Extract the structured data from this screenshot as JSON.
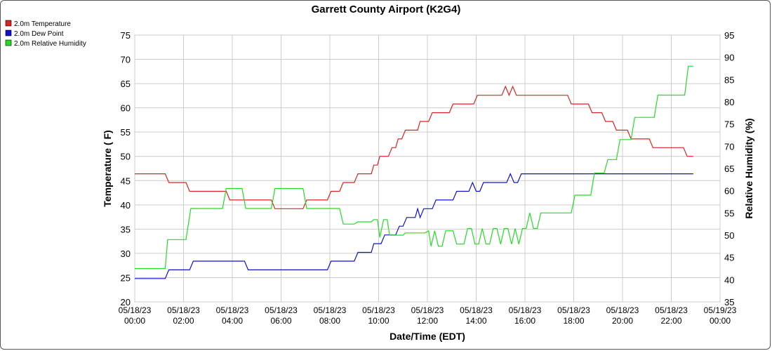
{
  "chart_data": {
    "type": "line",
    "title": "Garrett County Airport (K2G4)",
    "xlabel": "Date/Time (EDT)",
    "ylabel_left": "Temperature ( F)",
    "ylabel_right": "Relative Humidity (%)",
    "ylim_left": [
      20,
      75
    ],
    "ylim_right": [
      35,
      95
    ],
    "yticks_left": [
      20,
      25,
      30,
      35,
      40,
      45,
      50,
      55,
      60,
      65,
      70,
      75
    ],
    "yticks_right": [
      35,
      40,
      45,
      50,
      55,
      60,
      65,
      70,
      75,
      80,
      85,
      90,
      95
    ],
    "xlim_hours": [
      0,
      24
    ],
    "x_ticks": [
      {
        "hour": 0,
        "date": "05/18/23",
        "time": "00:00"
      },
      {
        "hour": 2,
        "date": "05/18/23",
        "time": "02:00"
      },
      {
        "hour": 4,
        "date": "05/18/23",
        "time": "04:00"
      },
      {
        "hour": 6,
        "date": "05/18/23",
        "time": "06:00"
      },
      {
        "hour": 8,
        "date": "05/18/23",
        "time": "08:00"
      },
      {
        "hour": 10,
        "date": "05/18/23",
        "time": "10:00"
      },
      {
        "hour": 12,
        "date": "05/18/23",
        "time": "12:00"
      },
      {
        "hour": 14,
        "date": "05/18/23",
        "time": "14:00"
      },
      {
        "hour": 16,
        "date": "05/18/23",
        "time": "16:00"
      },
      {
        "hour": 18,
        "date": "05/18/23",
        "time": "18:00"
      },
      {
        "hour": 20,
        "date": "05/18/23",
        "time": "20:00"
      },
      {
        "hour": 22,
        "date": "05/18/23",
        "time": "22:00"
      },
      {
        "hour": 24,
        "date": "05/19/23",
        "time": "00:00"
      }
    ],
    "grid": true,
    "legend_position": "top-left",
    "series": [
      {
        "name": "2.0m Temperature",
        "color": "#dd2222",
        "axis": "left",
        "points": [
          [
            0,
            46.4
          ],
          [
            1.25,
            46.4
          ],
          [
            1.4,
            44.6
          ],
          [
            2.1,
            44.6
          ],
          [
            2.25,
            42.8
          ],
          [
            3.75,
            42.8
          ],
          [
            3.9,
            41
          ],
          [
            5.6,
            41
          ],
          [
            5.75,
            39.2
          ],
          [
            6.9,
            39.2
          ],
          [
            7.05,
            41
          ],
          [
            7.9,
            41
          ],
          [
            8.05,
            42.8
          ],
          [
            8.4,
            42.8
          ],
          [
            8.55,
            44.6
          ],
          [
            9.0,
            44.6
          ],
          [
            9.15,
            46.4
          ],
          [
            9.7,
            46.4
          ],
          [
            9.8,
            48.2
          ],
          [
            9.95,
            48.2
          ],
          [
            10.05,
            50
          ],
          [
            10.4,
            50
          ],
          [
            10.55,
            51.8
          ],
          [
            10.7,
            51.8
          ],
          [
            10.8,
            53.6
          ],
          [
            10.95,
            53.6
          ],
          [
            11.1,
            55.4
          ],
          [
            11.6,
            55.4
          ],
          [
            11.7,
            57.2
          ],
          [
            12.05,
            57.2
          ],
          [
            12.2,
            59
          ],
          [
            12.9,
            59
          ],
          [
            13.05,
            60.8
          ],
          [
            13.9,
            60.8
          ],
          [
            14.05,
            62.6
          ],
          [
            15.05,
            62.6
          ],
          [
            15.2,
            64.4
          ],
          [
            15.35,
            62.6
          ],
          [
            15.5,
            64.4
          ],
          [
            15.65,
            62.6
          ],
          [
            17.75,
            62.6
          ],
          [
            17.9,
            60.8
          ],
          [
            18.6,
            60.8
          ],
          [
            18.75,
            59
          ],
          [
            19.15,
            59
          ],
          [
            19.3,
            57.2
          ],
          [
            19.6,
            57.2
          ],
          [
            19.75,
            55.4
          ],
          [
            20.2,
            55.4
          ],
          [
            20.35,
            53.6
          ],
          [
            21.1,
            53.6
          ],
          [
            21.25,
            51.8
          ],
          [
            22.5,
            51.8
          ],
          [
            22.65,
            50
          ],
          [
            22.9,
            50
          ]
        ]
      },
      {
        "name": "2.0m Dew Point",
        "color": "#1111cc",
        "axis": "left",
        "points": [
          [
            0,
            24.8
          ],
          [
            1.25,
            24.8
          ],
          [
            1.4,
            26.6
          ],
          [
            2.25,
            26.6
          ],
          [
            2.4,
            28.4
          ],
          [
            4.5,
            28.4
          ],
          [
            4.65,
            26.6
          ],
          [
            7.9,
            26.6
          ],
          [
            8.05,
            28.4
          ],
          [
            9.0,
            28.4
          ],
          [
            9.15,
            30.2
          ],
          [
            9.7,
            30.2
          ],
          [
            9.8,
            32
          ],
          [
            10.1,
            32
          ],
          [
            10.25,
            33.8
          ],
          [
            10.7,
            33.8
          ],
          [
            10.85,
            35.6
          ],
          [
            11.0,
            35.6
          ],
          [
            11.15,
            37.4
          ],
          [
            11.5,
            37.4
          ],
          [
            11.6,
            39.2
          ],
          [
            11.7,
            37.4
          ],
          [
            11.85,
            39.2
          ],
          [
            12.2,
            39.2
          ],
          [
            12.35,
            41
          ],
          [
            13.05,
            41
          ],
          [
            13.2,
            42.8
          ],
          [
            13.7,
            42.8
          ],
          [
            13.85,
            44.6
          ],
          [
            14.0,
            42.8
          ],
          [
            14.15,
            42.8
          ],
          [
            14.3,
            44.6
          ],
          [
            15.25,
            44.6
          ],
          [
            15.4,
            46.4
          ],
          [
            15.55,
            44.6
          ],
          [
            15.7,
            44.6
          ],
          [
            15.85,
            46.4
          ],
          [
            22.9,
            46.4
          ]
        ]
      },
      {
        "name": "2.0m Relative Humidity",
        "color": "#22dd22",
        "axis": "right",
        "points": [
          [
            0,
            42.5
          ],
          [
            1.25,
            42.5
          ],
          [
            1.35,
            49
          ],
          [
            2.1,
            49
          ],
          [
            2.3,
            56
          ],
          [
            3.6,
            56
          ],
          [
            3.75,
            60.5
          ],
          [
            4.4,
            60.5
          ],
          [
            4.55,
            56
          ],
          [
            5.6,
            56
          ],
          [
            5.75,
            60.5
          ],
          [
            6.9,
            60.5
          ],
          [
            7.05,
            56
          ],
          [
            8.05,
            56
          ],
          [
            8.4,
            56
          ],
          [
            8.55,
            52.5
          ],
          [
            9.0,
            52.5
          ],
          [
            9.15,
            53
          ],
          [
            9.7,
            53
          ],
          [
            9.8,
            53.5
          ],
          [
            9.95,
            53.5
          ],
          [
            10.05,
            49.5
          ],
          [
            10.2,
            53.5
          ],
          [
            10.35,
            53.5
          ],
          [
            10.45,
            50
          ],
          [
            11.0,
            50
          ],
          [
            11.1,
            50.5
          ],
          [
            11.9,
            50.5
          ],
          [
            12.05,
            51
          ],
          [
            12.15,
            47.5
          ],
          [
            12.3,
            51
          ],
          [
            12.45,
            47.5
          ],
          [
            12.6,
            47.5
          ],
          [
            12.75,
            51
          ],
          [
            13.05,
            51
          ],
          [
            13.2,
            48
          ],
          [
            13.5,
            48
          ],
          [
            13.65,
            51.5
          ],
          [
            13.8,
            51.5
          ],
          [
            13.95,
            48
          ],
          [
            14.1,
            48
          ],
          [
            14.25,
            51.5
          ],
          [
            14.4,
            48
          ],
          [
            14.55,
            48
          ],
          [
            14.7,
            51.5
          ],
          [
            14.85,
            51.5
          ],
          [
            15.0,
            48
          ],
          [
            15.15,
            51.5
          ],
          [
            15.3,
            51.5
          ],
          [
            15.45,
            48
          ],
          [
            15.6,
            51.5
          ],
          [
            15.75,
            48
          ],
          [
            15.9,
            51.5
          ],
          [
            16.05,
            51.5
          ],
          [
            16.2,
            55
          ],
          [
            16.35,
            51.5
          ],
          [
            16.5,
            51.5
          ],
          [
            16.65,
            55
          ],
          [
            17.3,
            55
          ],
          [
            17.9,
            55
          ],
          [
            18.05,
            59
          ],
          [
            18.7,
            59
          ],
          [
            18.85,
            64
          ],
          [
            19.25,
            64
          ],
          [
            19.4,
            67
          ],
          [
            19.75,
            67
          ],
          [
            19.9,
            71.5
          ],
          [
            20.35,
            71.5
          ],
          [
            20.5,
            76.5
          ],
          [
            21.3,
            76.5
          ],
          [
            21.45,
            81.5
          ],
          [
            22.55,
            81.5
          ],
          [
            22.7,
            88
          ],
          [
            22.9,
            88
          ]
        ]
      }
    ]
  }
}
